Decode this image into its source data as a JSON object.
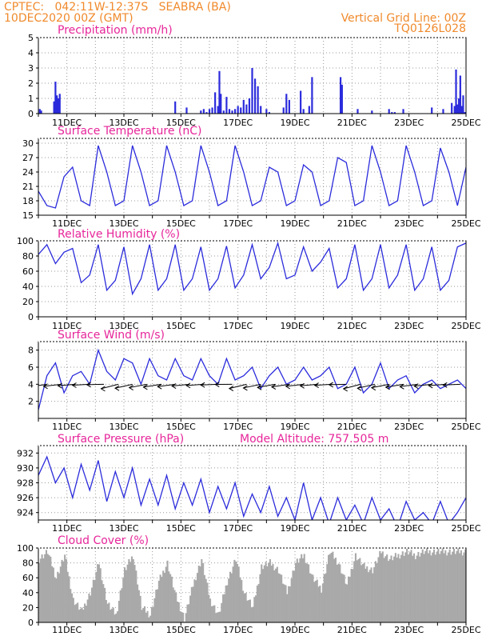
{
  "header": {
    "line1": "CPTEC:   042:11W-12:37S   SEABRA (BA)",
    "line2": "10DEC2020 00Z (GMT)",
    "vgrid": "Vertical Grid Line: 00Z",
    "code": "TQ0126L028"
  },
  "colors": {
    "series": "#2b2bdc",
    "cloud": "#a9a9a9",
    "title": "#e6269a",
    "header": "#f08a2c",
    "grid": "#9a9a9a"
  },
  "xaxis": {
    "ticks": [
      "11DEC",
      "13DEC",
      "15DEC",
      "17DEC",
      "19DEC",
      "21DEC",
      "23DEC",
      "25DEC"
    ],
    "start": "10DEC2020 00Z",
    "end": "25DEC2020 00Z"
  },
  "chart_data": [
    {
      "type": "bar",
      "title": "Precipitation (mm/h)",
      "ylim": [
        0,
        5
      ],
      "yticks": [
        0,
        1,
        2,
        3,
        4,
        5
      ],
      "x_days": [
        0.05,
        0.1,
        0.55,
        0.6,
        0.65,
        0.7,
        0.75,
        4.8,
        5.2,
        5.7,
        5.8,
        5.9,
        6.0,
        6.1,
        6.2,
        6.3,
        6.35,
        6.4,
        6.5,
        6.6,
        6.7,
        6.8,
        6.9,
        7.0,
        7.1,
        7.2,
        7.3,
        7.4,
        7.5,
        7.6,
        7.7,
        7.8,
        8.0,
        8.1,
        8.6,
        8.7,
        8.8,
        9.2,
        9.3,
        9.5,
        9.6,
        10.6,
        10.65,
        11.2,
        11.7,
        12.3,
        12.4,
        12.5,
        12.8,
        13.8,
        14.2,
        14.5,
        14.6,
        14.7,
        14.8,
        14.9,
        15.0
      ],
      "values": [
        0.3,
        0.2,
        0.8,
        2.1,
        1.2,
        1.0,
        1.3,
        0.8,
        0.4,
        0.2,
        0.3,
        0.1,
        0.3,
        0.4,
        1.4,
        0.5,
        2.8,
        1.3,
        0.2,
        1.1,
        0.3,
        0.2,
        0.3,
        0.5,
        0.4,
        0.9,
        0.6,
        1.0,
        3.0,
        2.3,
        1.8,
        0.5,
        0.3,
        0.1,
        0.4,
        1.3,
        0.9,
        1.5,
        0.3,
        0.5,
        2.4,
        2.4,
        1.9,
        0.3,
        0.2,
        0.3,
        0.1,
        0.1,
        0.3,
        0.4,
        0.3,
        0.7,
        0.5,
        0.2,
        1.5,
        0.3,
        0.1
      ],
      "tail": [
        14.65,
        14.7,
        14.75,
        14.8,
        14.85,
        14.9,
        14.95
      ],
      "tail_values": [
        2.9,
        0.6,
        1.0,
        2.5,
        0.5,
        1.2,
        0.1
      ]
    },
    {
      "type": "line",
      "title": "Surface Temperature (nC)",
      "ylim": [
        15,
        31
      ],
      "yticks": [
        15,
        18,
        21,
        24,
        27,
        30
      ],
      "x_days": [
        0,
        0.3,
        0.6,
        0.9,
        1.2,
        1.5,
        1.8,
        2.1,
        2.4,
        2.7,
        3.0,
        3.3,
        3.6,
        3.9,
        4.2,
        4.5,
        4.8,
        5.1,
        5.4,
        5.7,
        6.0,
        6.3,
        6.6,
        6.9,
        7.2,
        7.5,
        7.8,
        8.1,
        8.4,
        8.7,
        9.0,
        9.3,
        9.6,
        9.9,
        10.2,
        10.5,
        10.8,
        11.1,
        11.4,
        11.7,
        12.0,
        12.3,
        12.6,
        12.9,
        13.2,
        13.5,
        13.8,
        14.1,
        14.4,
        14.7,
        15.0
      ],
      "values": [
        20,
        17,
        16.5,
        23,
        25,
        18,
        17,
        29.5,
        24,
        17,
        18,
        29.5,
        24,
        17,
        18,
        29.5,
        24,
        17,
        18,
        29.5,
        24,
        17,
        18,
        29.5,
        24,
        17,
        18,
        25,
        24,
        17,
        18,
        25.5,
        24,
        17,
        18,
        27,
        26,
        17,
        18,
        29.5,
        24,
        17,
        18,
        29.5,
        24,
        17,
        18,
        29,
        24,
        17,
        25
      ]
    },
    {
      "type": "line",
      "title": "Relative Humidity (%)",
      "ylim": [
        0,
        100
      ],
      "yticks": [
        0,
        20,
        40,
        60,
        80,
        100
      ],
      "x_days": [
        0,
        0.3,
        0.6,
        0.9,
        1.2,
        1.5,
        1.8,
        2.1,
        2.4,
        2.7,
        3.0,
        3.3,
        3.6,
        3.9,
        4.2,
        4.5,
        4.8,
        5.1,
        5.4,
        5.7,
        6.0,
        6.3,
        6.6,
        6.9,
        7.2,
        7.5,
        7.8,
        8.1,
        8.4,
        8.7,
        9.0,
        9.3,
        9.6,
        9.9,
        10.2,
        10.5,
        10.8,
        11.1,
        11.4,
        11.7,
        12.0,
        12.3,
        12.6,
        12.9,
        13.2,
        13.5,
        13.8,
        14.1,
        14.4,
        14.7,
        15.0
      ],
      "values": [
        82,
        95,
        70,
        85,
        90,
        45,
        55,
        95,
        35,
        48,
        92,
        30,
        50,
        95,
        35,
        50,
        95,
        35,
        50,
        92,
        35,
        50,
        93,
        38,
        55,
        95,
        50,
        65,
        97,
        50,
        55,
        92,
        60,
        72,
        90,
        38,
        50,
        95,
        35,
        50,
        95,
        38,
        55,
        95,
        35,
        50,
        92,
        35,
        48,
        92,
        97
      ]
    },
    {
      "type": "line",
      "title": "Surface Wind (m/s)",
      "ylim": [
        0,
        9
      ],
      "yticks": [
        2,
        4,
        6,
        8
      ],
      "x_days": [
        0,
        0.3,
        0.6,
        0.9,
        1.2,
        1.5,
        1.8,
        2.1,
        2.4,
        2.7,
        3.0,
        3.3,
        3.6,
        3.9,
        4.2,
        4.5,
        4.8,
        5.1,
        5.4,
        5.7,
        6.0,
        6.3,
        6.6,
        6.9,
        7.2,
        7.5,
        7.8,
        8.1,
        8.4,
        8.7,
        9.0,
        9.3,
        9.6,
        9.9,
        10.2,
        10.5,
        10.8,
        11.1,
        11.4,
        11.7,
        12.0,
        12.3,
        12.6,
        12.9,
        13.2,
        13.5,
        13.8,
        14.1,
        14.4,
        14.7,
        15.0
      ],
      "values": [
        1,
        5,
        6.5,
        3,
        5,
        5.5,
        4,
        8,
        5.5,
        4.5,
        7,
        6.5,
        4,
        7,
        5,
        4.5,
        7,
        5,
        4.5,
        7,
        5,
        4,
        7,
        4.5,
        5,
        6,
        3.5,
        5,
        6,
        4,
        4.5,
        6,
        4.5,
        5,
        6,
        3.5,
        4,
        6,
        3,
        4,
        6.5,
        3.5,
        4.5,
        5,
        3,
        4,
        4.5,
        3.5,
        4,
        4.5,
        3.5
      ]
    },
    {
      "type": "line",
      "title": "Surface Pressure (hPa)",
      "annotation": "Model Altitude: 757.505 m",
      "ylim": [
        923,
        933
      ],
      "yticks": [
        924,
        926,
        928,
        930,
        932
      ],
      "x_days": [
        0,
        0.3,
        0.6,
        0.9,
        1.2,
        1.5,
        1.8,
        2.1,
        2.4,
        2.7,
        3.0,
        3.3,
        3.6,
        3.9,
        4.2,
        4.5,
        4.8,
        5.1,
        5.4,
        5.7,
        6.0,
        6.3,
        6.6,
        6.9,
        7.2,
        7.5,
        7.8,
        8.1,
        8.4,
        8.7,
        9.0,
        9.3,
        9.6,
        9.9,
        10.2,
        10.5,
        10.8,
        11.1,
        11.4,
        11.7,
        12.0,
        12.3,
        12.6,
        12.9,
        13.2,
        13.5,
        13.8,
        14.1,
        14.4,
        14.7,
        15.0
      ],
      "values": [
        929,
        931.5,
        928,
        930,
        926,
        930.5,
        927,
        931,
        925.5,
        929.5,
        926,
        930,
        925,
        928.5,
        925,
        929,
        924.5,
        928,
        925,
        928.5,
        924,
        927.5,
        924.5,
        928,
        923.5,
        926.5,
        924,
        927.5,
        923.5,
        926,
        923,
        928,
        923,
        926,
        922.5,
        926,
        923,
        925,
        922.5,
        926,
        923,
        924.5,
        922,
        925.5,
        923,
        924,
        922.5,
        925.5,
        922.5,
        924,
        926
      ]
    },
    {
      "type": "bar",
      "title": "Cloud Cover (%)",
      "ylim": [
        0,
        100
      ],
      "yticks": [
        0,
        20,
        40,
        60,
        80,
        100
      ],
      "x_days": [
        0,
        0.3,
        0.6,
        0.9,
        1.2,
        1.5,
        1.8,
        2.1,
        2.4,
        2.7,
        3.0,
        3.3,
        3.6,
        3.9,
        4.2,
        4.5,
        4.8,
        5.1,
        5.4,
        5.7,
        6.0,
        6.3,
        6.6,
        6.9,
        7.2,
        7.5,
        7.8,
        8.1,
        8.4,
        8.7,
        9.0,
        9.3,
        9.6,
        9.9,
        10.2,
        10.5,
        10.8,
        11.1,
        11.4,
        11.7,
        12.0,
        12.3,
        12.6,
        12.9,
        13.2,
        13.5,
        13.8,
        14.1,
        14.4,
        14.7,
        15.0
      ],
      "values": [
        85,
        95,
        60,
        90,
        30,
        15,
        40,
        80,
        25,
        10,
        70,
        90,
        20,
        10,
        55,
        80,
        35,
        5,
        50,
        85,
        30,
        10,
        55,
        85,
        40,
        20,
        75,
        80,
        70,
        40,
        80,
        90,
        60,
        45,
        95,
        80,
        50,
        90,
        75,
        70,
        95,
        85,
        90,
        95,
        90,
        95,
        95,
        95,
        95,
        95,
        95
      ]
    }
  ]
}
